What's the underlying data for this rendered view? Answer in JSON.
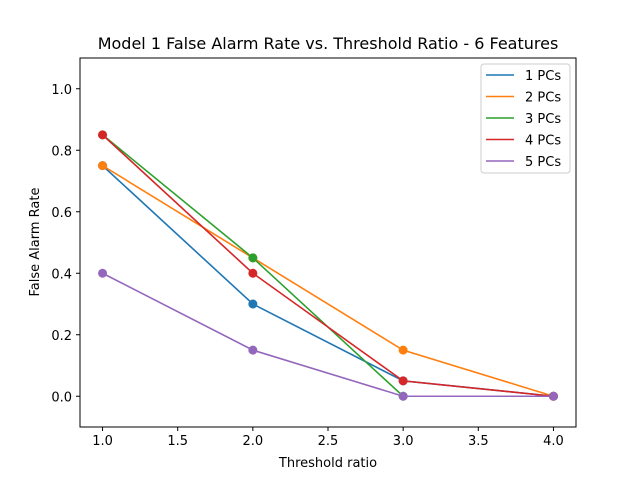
{
  "chart_data": {
    "type": "line",
    "title": "Model 1 False Alarm Rate vs. Threshold Ratio - 6 Features",
    "xlabel": "Threshold ratio",
    "ylabel": "False Alarm Rate",
    "xlim": [
      0.85,
      4.15
    ],
    "ylim": [
      -0.1,
      1.1
    ],
    "xticks": [
      1.0,
      1.5,
      2.0,
      2.5,
      3.0,
      3.5,
      4.0
    ],
    "xtick_labels": [
      "1.0",
      "1.5",
      "2.0",
      "2.5",
      "3.0",
      "3.5",
      "4.0"
    ],
    "yticks": [
      0.0,
      0.2,
      0.4,
      0.6,
      0.8,
      1.0
    ],
    "ytick_labels": [
      "0.0",
      "0.2",
      "0.4",
      "0.6",
      "0.8",
      "1.0"
    ],
    "grid": false,
    "legend_position": "top-right",
    "x": [
      1.0,
      2.0,
      3.0,
      4.0
    ],
    "series": [
      {
        "name": "1 PCs",
        "color": "#1f77b4",
        "values": [
          0.75,
          0.3,
          0.05,
          0.0
        ]
      },
      {
        "name": "2 PCs",
        "color": "#ff7f0e",
        "values": [
          0.75,
          0.45,
          0.15,
          0.0
        ]
      },
      {
        "name": "3 PCs",
        "color": "#2ca02c",
        "values": [
          0.85,
          0.45,
          0.0,
          0.0
        ]
      },
      {
        "name": "4 PCs",
        "color": "#d62728",
        "values": [
          0.85,
          0.4,
          0.05,
          0.0
        ]
      },
      {
        "name": "5 PCs",
        "color": "#9467bd",
        "values": [
          0.4,
          0.15,
          0.0,
          0.0
        ]
      }
    ]
  }
}
